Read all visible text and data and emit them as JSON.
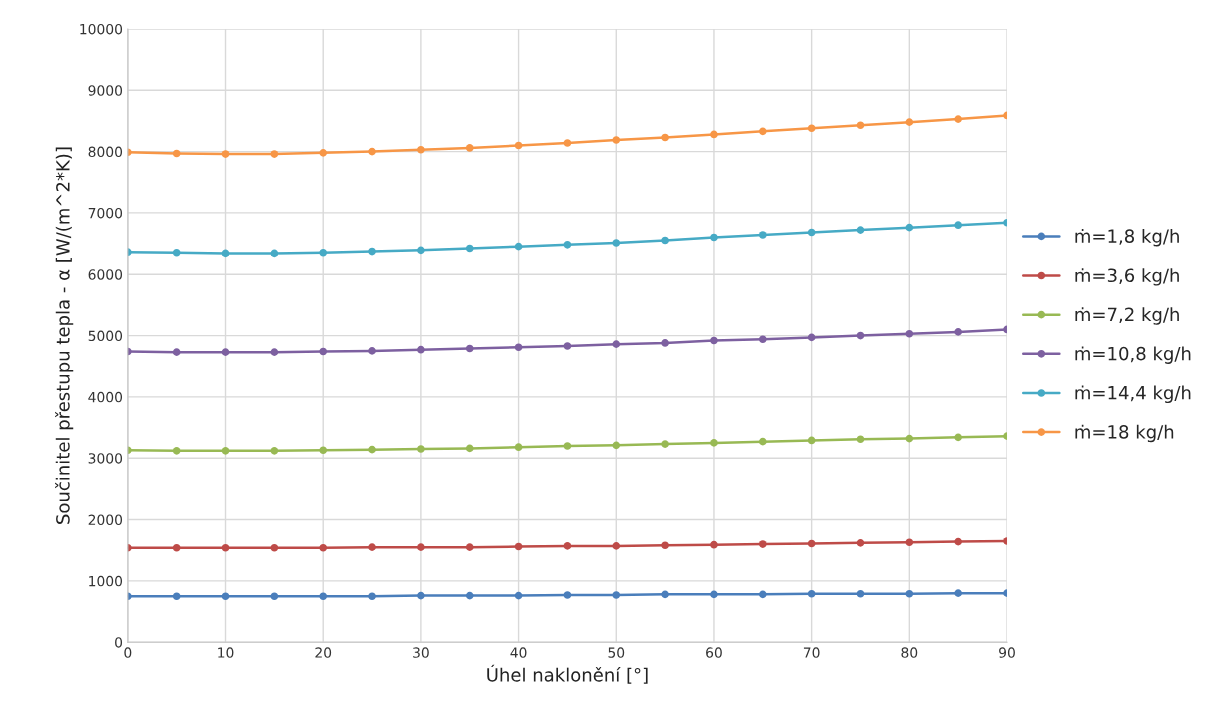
{
  "chart_data": {
    "type": "line",
    "xlabel": "Úhel naklonění [°]",
    "ylabel": "Součinitel přestupu tepla - α [W/(m^2*K)]",
    "x": [
      0,
      5,
      10,
      15,
      20,
      25,
      30,
      35,
      40,
      45,
      50,
      55,
      60,
      65,
      70,
      75,
      80,
      85,
      90
    ],
    "series": [
      {
        "name": "ṁ=1,8 kg/h",
        "color": "#4a7ebb",
        "values": [
          750,
          750,
          750,
          750,
          750,
          750,
          760,
          760,
          760,
          770,
          770,
          780,
          780,
          780,
          790,
          790,
          790,
          800,
          800
        ]
      },
      {
        "name": "ṁ=3,6 kg/h",
        "color": "#be4b48",
        "values": [
          1540,
          1540,
          1540,
          1540,
          1540,
          1550,
          1550,
          1550,
          1560,
          1570,
          1570,
          1580,
          1590,
          1600,
          1610,
          1620,
          1630,
          1640,
          1650
        ]
      },
      {
        "name": "ṁ=7,2 kg/h",
        "color": "#98b954",
        "values": [
          3130,
          3120,
          3120,
          3120,
          3130,
          3140,
          3150,
          3160,
          3180,
          3200,
          3210,
          3230,
          3250,
          3270,
          3290,
          3310,
          3320,
          3340,
          3360
        ]
      },
      {
        "name": "ṁ=10,8 kg/h",
        "color": "#7d60a0",
        "values": [
          4740,
          4730,
          4730,
          4730,
          4740,
          4750,
          4770,
          4790,
          4810,
          4830,
          4860,
          4880,
          4920,
          4940,
          4970,
          5000,
          5030,
          5060,
          5100
        ]
      },
      {
        "name": "ṁ=14,4 kg/h",
        "color": "#46aac5",
        "values": [
          6360,
          6350,
          6340,
          6340,
          6350,
          6370,
          6390,
          6420,
          6450,
          6480,
          6510,
          6550,
          6600,
          6640,
          6680,
          6720,
          6760,
          6800,
          6840
        ]
      },
      {
        "name": "ṁ=18 kg/h",
        "color": "#f79646",
        "values": [
          7990,
          7970,
          7960,
          7960,
          7980,
          8000,
          8030,
          8060,
          8100,
          8140,
          8190,
          8230,
          8280,
          8330,
          8380,
          8430,
          8480,
          8530,
          8590
        ]
      }
    ],
    "xlim": [
      0,
      90
    ],
    "xticks": [
      0,
      10,
      20,
      30,
      40,
      50,
      60,
      70,
      80,
      90
    ],
    "ylim": [
      0,
      10000
    ],
    "yticks": [
      0,
      1000,
      2000,
      3000,
      4000,
      5000,
      6000,
      7000,
      8000,
      9000,
      10000
    ],
    "grid": true,
    "legend": "right",
    "marker": "circle",
    "line_style": "solid"
  }
}
